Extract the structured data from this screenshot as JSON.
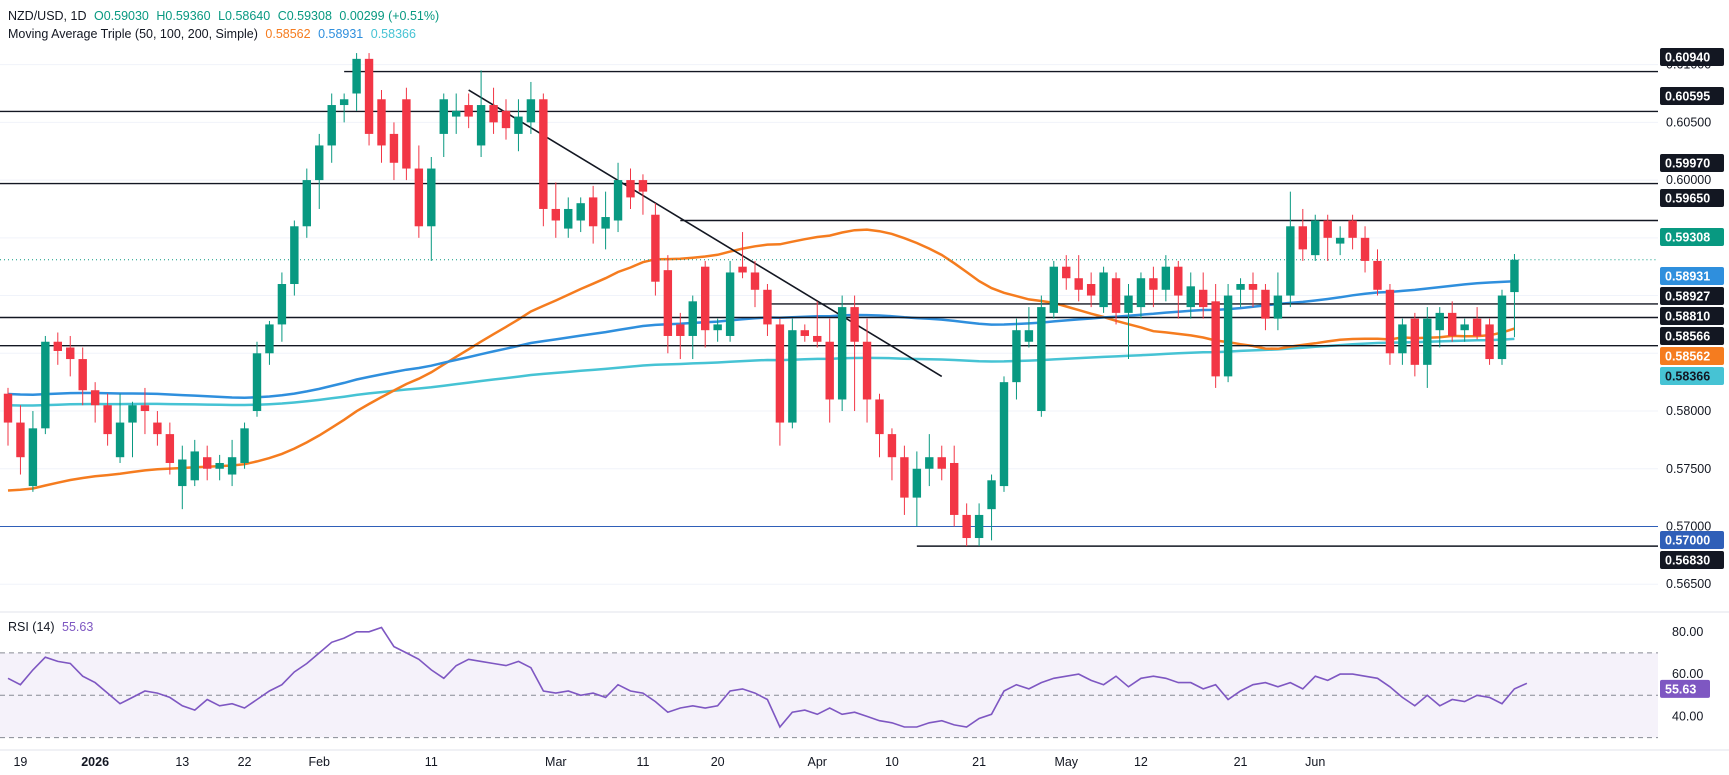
{
  "legend": {
    "symbol": "NZD/USD, 1D",
    "open": "O0.59030",
    "high": "H0.59360",
    "low": "L0.58640",
    "close": "C0.59308",
    "change": "0.00299 (+0.51%)",
    "ma_label": "Moving Average Triple (50, 100, 200, Simple)",
    "ma50": "0.58562",
    "ma100": "0.58931",
    "ma200": "0.58366",
    "rsi_label": "RSI (14)",
    "rsi_value": "55.63"
  },
  "colors": {
    "up": "#089981",
    "down": "#f23645",
    "ma50": "#f57c1f",
    "ma100": "#2f8fdd",
    "ma200": "#46c3d4",
    "rsi": "#7e57c2"
  },
  "chart_data": {
    "type": "candlestick",
    "price_range": [
      0.5632,
      0.6117
    ],
    "price_ticks": [
      "0.56500",
      "0.57000",
      "0.57500",
      "0.58000",
      "0.58500",
      "0.59000",
      "0.59500",
      "0.60000",
      "0.60500",
      "0.61000"
    ],
    "x_labels": [
      {
        "i": 1,
        "label": "19"
      },
      {
        "i": 7,
        "label": "2026"
      },
      {
        "i": 14,
        "label": "13"
      },
      {
        "i": 19,
        "label": "22"
      },
      {
        "i": 25,
        "label": "Feb"
      },
      {
        "i": 34,
        "label": "11"
      },
      {
        "i": 44,
        "label": "Mar"
      },
      {
        "i": 51,
        "label": "11"
      },
      {
        "i": 57,
        "label": "20"
      },
      {
        "i": 65,
        "label": "Apr"
      },
      {
        "i": 71,
        "label": "10"
      },
      {
        "i": 78,
        "label": "21"
      },
      {
        "i": 85,
        "label": "May"
      },
      {
        "i": 91,
        "label": "12"
      },
      {
        "i": 99,
        "label": "21"
      },
      {
        "i": 105,
        "label": "Jun"
      }
    ],
    "ohlc": [
      [
        0.5815,
        0.582,
        0.577,
        0.579
      ],
      [
        0.579,
        0.5805,
        0.5745,
        0.576
      ],
      [
        0.5735,
        0.58,
        0.573,
        0.5785
      ],
      [
        0.5785,
        0.5865,
        0.578,
        0.586
      ],
      [
        0.586,
        0.5868,
        0.584,
        0.5852
      ],
      [
        0.5855,
        0.5865,
        0.583,
        0.5845
      ],
      [
        0.5845,
        0.5855,
        0.5805,
        0.5818
      ],
      [
        0.5818,
        0.5825,
        0.579,
        0.5805
      ],
      [
        0.5805,
        0.5815,
        0.577,
        0.578
      ],
      [
        0.576,
        0.5815,
        0.5755,
        0.579
      ],
      [
        0.579,
        0.5808,
        0.576,
        0.5805
      ],
      [
        0.5805,
        0.582,
        0.578,
        0.58
      ],
      [
        0.579,
        0.58,
        0.577,
        0.578
      ],
      [
        0.578,
        0.579,
        0.5745,
        0.5755
      ],
      [
        0.5735,
        0.577,
        0.5715,
        0.5758
      ],
      [
        0.574,
        0.5775,
        0.5735,
        0.5765
      ],
      [
        0.576,
        0.577,
        0.574,
        0.575
      ],
      [
        0.575,
        0.5762,
        0.574,
        0.5755
      ],
      [
        0.5745,
        0.5775,
        0.5735,
        0.576
      ],
      [
        0.5755,
        0.579,
        0.575,
        0.5785
      ],
      [
        0.58,
        0.586,
        0.5795,
        0.585
      ],
      [
        0.585,
        0.5878,
        0.584,
        0.5875
      ],
      [
        0.5875,
        0.592,
        0.586,
        0.591
      ],
      [
        0.591,
        0.5965,
        0.59,
        0.596
      ],
      [
        0.596,
        0.601,
        0.595,
        0.6
      ],
      [
        0.6,
        0.604,
        0.5975,
        0.603
      ],
      [
        0.603,
        0.6075,
        0.6015,
        0.6065
      ],
      [
        0.6065,
        0.6075,
        0.605,
        0.607
      ],
      [
        0.6075,
        0.611,
        0.606,
        0.6105
      ],
      [
        0.6105,
        0.611,
        0.603,
        0.604
      ],
      [
        0.607,
        0.6078,
        0.6015,
        0.603
      ],
      [
        0.604,
        0.605,
        0.6,
        0.6015
      ],
      [
        0.607,
        0.608,
        0.6,
        0.601
      ],
      [
        0.601,
        0.603,
        0.595,
        0.596
      ],
      [
        0.596,
        0.602,
        0.593,
        0.601
      ],
      [
        0.604,
        0.6075,
        0.602,
        0.607
      ],
      [
        0.6055,
        0.6075,
        0.604,
        0.606
      ],
      [
        0.6065,
        0.6075,
        0.6045,
        0.6055
      ],
      [
        0.603,
        0.6095,
        0.602,
        0.6065
      ],
      [
        0.6065,
        0.608,
        0.604,
        0.605
      ],
      [
        0.606,
        0.607,
        0.6035,
        0.6045
      ],
      [
        0.604,
        0.607,
        0.6025,
        0.6055
      ],
      [
        0.605,
        0.6085,
        0.604,
        0.607
      ],
      [
        0.607,
        0.6075,
        0.596,
        0.5975
      ],
      [
        0.5975,
        0.5998,
        0.595,
        0.5965
      ],
      [
        0.5958,
        0.5985,
        0.595,
        0.5975
      ],
      [
        0.5965,
        0.5985,
        0.5955,
        0.598
      ],
      [
        0.5985,
        0.5995,
        0.5945,
        0.596
      ],
      [
        0.5958,
        0.599,
        0.594,
        0.5968
      ],
      [
        0.5965,
        0.6015,
        0.5955,
        0.6
      ],
      [
        0.6,
        0.601,
        0.5975,
        0.5985
      ],
      [
        0.6,
        0.6005,
        0.597,
        0.599
      ],
      [
        0.597,
        0.598,
        0.59,
        0.5912
      ],
      [
        0.5922,
        0.5935,
        0.585,
        0.5865
      ],
      [
        0.5875,
        0.5885,
        0.5845,
        0.5865
      ],
      [
        0.5865,
        0.59,
        0.5845,
        0.5895
      ],
      [
        0.5925,
        0.593,
        0.5855,
        0.587
      ],
      [
        0.587,
        0.588,
        0.586,
        0.5875
      ],
      [
        0.5865,
        0.593,
        0.586,
        0.592
      ],
      [
        0.5925,
        0.5955,
        0.5915,
        0.592
      ],
      [
        0.592,
        0.593,
        0.589,
        0.5905
      ],
      [
        0.5905,
        0.591,
        0.5865,
        0.5875
      ],
      [
        0.5875,
        0.588,
        0.577,
        0.579
      ],
      [
        0.579,
        0.588,
        0.5785,
        0.587
      ],
      [
        0.587,
        0.5875,
        0.586,
        0.5865
      ],
      [
        0.5865,
        0.5895,
        0.5855,
        0.586
      ],
      [
        0.586,
        0.588,
        0.579,
        0.581
      ],
      [
        0.581,
        0.59,
        0.58,
        0.589
      ],
      [
        0.589,
        0.59,
        0.58,
        0.586
      ],
      [
        0.586,
        0.588,
        0.579,
        0.581
      ],
      [
        0.581,
        0.5815,
        0.576,
        0.578
      ],
      [
        0.578,
        0.5785,
        0.574,
        0.576
      ],
      [
        0.576,
        0.577,
        0.571,
        0.5725
      ],
      [
        0.5725,
        0.5765,
        0.57,
        0.575
      ],
      [
        0.575,
        0.578,
        0.5735,
        0.576
      ],
      [
        0.576,
        0.577,
        0.574,
        0.575
      ],
      [
        0.5755,
        0.577,
        0.57,
        0.571
      ],
      [
        0.571,
        0.572,
        0.5683,
        0.569
      ],
      [
        0.569,
        0.572,
        0.5683,
        0.571
      ],
      [
        0.5715,
        0.5745,
        0.5688,
        0.574
      ],
      [
        0.5735,
        0.583,
        0.573,
        0.5825
      ],
      [
        0.5825,
        0.588,
        0.581,
        0.587
      ],
      [
        0.586,
        0.589,
        0.5855,
        0.587
      ],
      [
        0.58,
        0.59,
        0.5795,
        0.589
      ],
      [
        0.5885,
        0.593,
        0.588,
        0.5925
      ],
      [
        0.5925,
        0.5935,
        0.5905,
        0.5915
      ],
      [
        0.5915,
        0.5935,
        0.5895,
        0.5905
      ],
      [
        0.591,
        0.592,
        0.589,
        0.59
      ],
      [
        0.589,
        0.5925,
        0.5885,
        0.592
      ],
      [
        0.5915,
        0.592,
        0.5875,
        0.5885
      ],
      [
        0.5885,
        0.591,
        0.5845,
        0.59
      ],
      [
        0.589,
        0.592,
        0.588,
        0.5915
      ],
      [
        0.5915,
        0.5925,
        0.589,
        0.5905
      ],
      [
        0.5905,
        0.5935,
        0.5895,
        0.5925
      ],
      [
        0.5925,
        0.593,
        0.588,
        0.59
      ],
      [
        0.589,
        0.592,
        0.588,
        0.5908
      ],
      [
        0.5905,
        0.592,
        0.588,
        0.589
      ],
      [
        0.5895,
        0.591,
        0.582,
        0.583
      ],
      [
        0.583,
        0.591,
        0.5825,
        0.59
      ],
      [
        0.5905,
        0.5915,
        0.589,
        0.591
      ],
      [
        0.591,
        0.592,
        0.589,
        0.5905
      ],
      [
        0.5905,
        0.591,
        0.587,
        0.588
      ],
      [
        0.588,
        0.592,
        0.587,
        0.59
      ],
      [
        0.59,
        0.599,
        0.589,
        0.596
      ],
      [
        0.596,
        0.5975,
        0.593,
        0.594
      ],
      [
        0.5935,
        0.597,
        0.593,
        0.5965
      ],
      [
        0.5965,
        0.597,
        0.593,
        0.595
      ],
      [
        0.5945,
        0.596,
        0.5935,
        0.595
      ],
      [
        0.5965,
        0.597,
        0.594,
        0.595
      ],
      [
        0.595,
        0.596,
        0.592,
        0.593
      ],
      [
        0.593,
        0.594,
        0.59,
        0.5905
      ],
      [
        0.5905,
        0.591,
        0.584,
        0.585
      ],
      [
        0.585,
        0.588,
        0.584,
        0.5875
      ],
      [
        0.588,
        0.5885,
        0.583,
        0.584
      ],
      [
        0.584,
        0.589,
        0.582,
        0.588
      ],
      [
        0.587,
        0.589,
        0.5855,
        0.5885
      ],
      [
        0.5885,
        0.5895,
        0.586,
        0.5865
      ],
      [
        0.587,
        0.588,
        0.586,
        0.5875
      ],
      [
        0.588,
        0.589,
        0.5862,
        0.5865
      ],
      [
        0.5875,
        0.588,
        0.584,
        0.5845
      ],
      [
        0.5845,
        0.5905,
        0.584,
        0.59
      ],
      [
        0.5903,
        0.5936,
        0.5864,
        0.5931
      ]
    ],
    "rsi": {
      "range": [
        26.5,
        86.5
      ],
      "ticks": [
        "40.00",
        "60.00",
        "80.00"
      ],
      "band": [
        30,
        70
      ],
      "mid": 50,
      "values": [
        58,
        55,
        62,
        68,
        66,
        65,
        59,
        56,
        51,
        46,
        49,
        52,
        51,
        49,
        45,
        43,
        48,
        45,
        46,
        44,
        48,
        52,
        55,
        61,
        65,
        70,
        75,
        77,
        80,
        80,
        82,
        73,
        70,
        67,
        62,
        58,
        64,
        67,
        66,
        65,
        64,
        66,
        63,
        52,
        51,
        52,
        50,
        51,
        49,
        55,
        52,
        51,
        47,
        42,
        44,
        45,
        44,
        45,
        52,
        53,
        51,
        48,
        35,
        42,
        43,
        41,
        44,
        41,
        42,
        40,
        38,
        37,
        35,
        35,
        37,
        38,
        36,
        35,
        39,
        41,
        52,
        55,
        53,
        56,
        58,
        59,
        60,
        57,
        55,
        59,
        54,
        58,
        59,
        58,
        56,
        56,
        53,
        55,
        48,
        52,
        55,
        56,
        54,
        56,
        53,
        59,
        57,
        60,
        60,
        59,
        58,
        54,
        49,
        45,
        50,
        45,
        48,
        47,
        50,
        49,
        46,
        53,
        55.63
      ]
    }
  },
  "price_labels": [
    {
      "text": "0.60940",
      "bg": "#131722",
      "fg": "#ffffff"
    },
    {
      "text": "0.60595",
      "bg": "#131722",
      "fg": "#ffffff"
    },
    {
      "text": "0.59970",
      "bg": "#131722",
      "fg": "#ffffff"
    },
    {
      "text": "0.59650",
      "bg": "#131722",
      "fg": "#ffffff"
    },
    {
      "text": "0.59308",
      "bg": "#089981",
      "fg": "#ffffff"
    },
    {
      "text": "0.58931",
      "bg": "#2f8fdd",
      "fg": "#ffffff"
    },
    {
      "text": "0.58927",
      "bg": "#131722",
      "fg": "#ffffff"
    },
    {
      "text": "0.58810",
      "bg": "#131722",
      "fg": "#ffffff"
    },
    {
      "text": "0.58566",
      "bg": "#131722",
      "fg": "#ffffff"
    },
    {
      "text": "0.58562",
      "bg": "#f57c1f",
      "fg": "#ffffff"
    },
    {
      "text": "0.58366",
      "bg": "#46c3d4",
      "fg": "#131722"
    },
    {
      "text": "0.57000",
      "bg": "#2f5fb8",
      "fg": "#ffffff"
    },
    {
      "text": "0.56830",
      "bg": "#131722",
      "fg": "#ffffff"
    }
  ]
}
